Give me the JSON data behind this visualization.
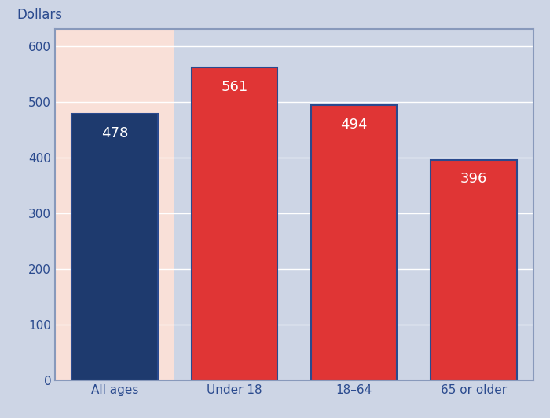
{
  "categories": [
    "All ages",
    "Under 18",
    "18–64",
    "65 or older"
  ],
  "values": [
    478,
    561,
    494,
    396
  ],
  "bar_colors": [
    "#1e3a6e",
    "#e03535",
    "#e03535",
    "#e03535"
  ],
  "bar_edge_colors": [
    "#2a4a8e",
    "#2a4a8e",
    "#2a4a8e",
    "#2a4a8e"
  ],
  "ylabel": "Dollars",
  "ylim": [
    0,
    630
  ],
  "yticks": [
    0,
    100,
    200,
    300,
    400,
    500,
    600
  ],
  "label_color": "#ffffff",
  "label_fontsize": 13,
  "ylabel_fontsize": 12,
  "tick_fontsize": 11,
  "tick_color": "#2a4a8e",
  "bg_all_ages": "#f9e0d8",
  "bg_age_groups": "#cdd5e5",
  "grid_color": "#ffffff",
  "border_color": "#8899bb",
  "bar_width": 0.72,
  "bar_edge_linewidth": 1.5
}
